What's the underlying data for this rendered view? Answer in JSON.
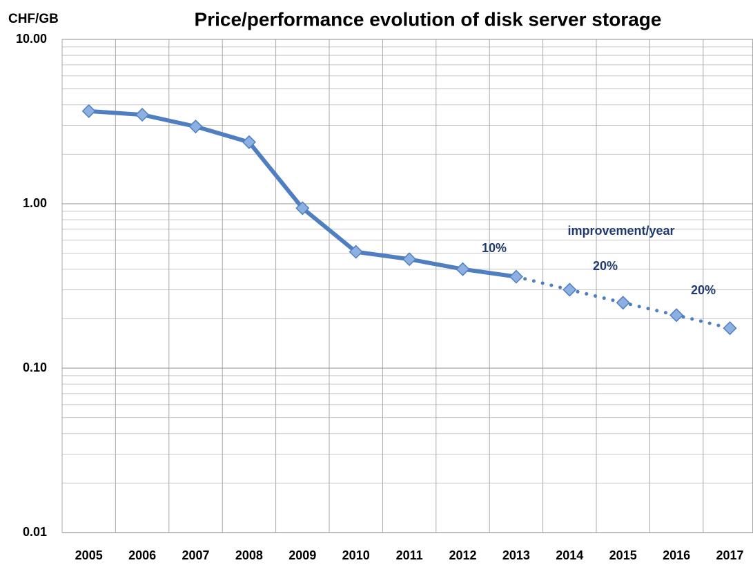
{
  "chart_data": {
    "type": "line",
    "title": "Price/performance evolution of disk server storage",
    "y_label": "CHF/GB",
    "categories": [
      "2005",
      "2006",
      "2007",
      "2008",
      "2009",
      "2010",
      "2011",
      "2012",
      "2013",
      "2014",
      "2015",
      "2016",
      "2017"
    ],
    "series": [
      {
        "color": "#4f7fc0",
        "marker_color": "#8db0e2",
        "values": [
          3.66,
          3.48,
          2.95,
          2.37,
          0.94,
          0.51,
          0.46,
          0.4,
          0.36,
          0.3,
          0.25,
          0.21,
          0.175
        ]
      }
    ],
    "projected_after": "2013",
    "log_y": true,
    "ylim": [
      0.01,
      10
    ],
    "yticks": [
      {
        "value": 10,
        "label": "10.00"
      },
      {
        "value": 1,
        "label": "1.00"
      },
      {
        "value": 0.1,
        "label": "0.10"
      },
      {
        "value": 0.01,
        "label": "0.01"
      }
    ],
    "yticks_minor": [
      0.02,
      0.03,
      0.04,
      0.05,
      0.06,
      0.07,
      0.08,
      0.09,
      0.2,
      0.3,
      0.4,
      0.5,
      0.6,
      0.7,
      0.8,
      0.9,
      2,
      3,
      4,
      5,
      6,
      7,
      8,
      9
    ],
    "grid": true,
    "annotations": [
      "improvement/year",
      "10%",
      "20%",
      "20%"
    ],
    "annotation_color": "#1f3a6e"
  }
}
